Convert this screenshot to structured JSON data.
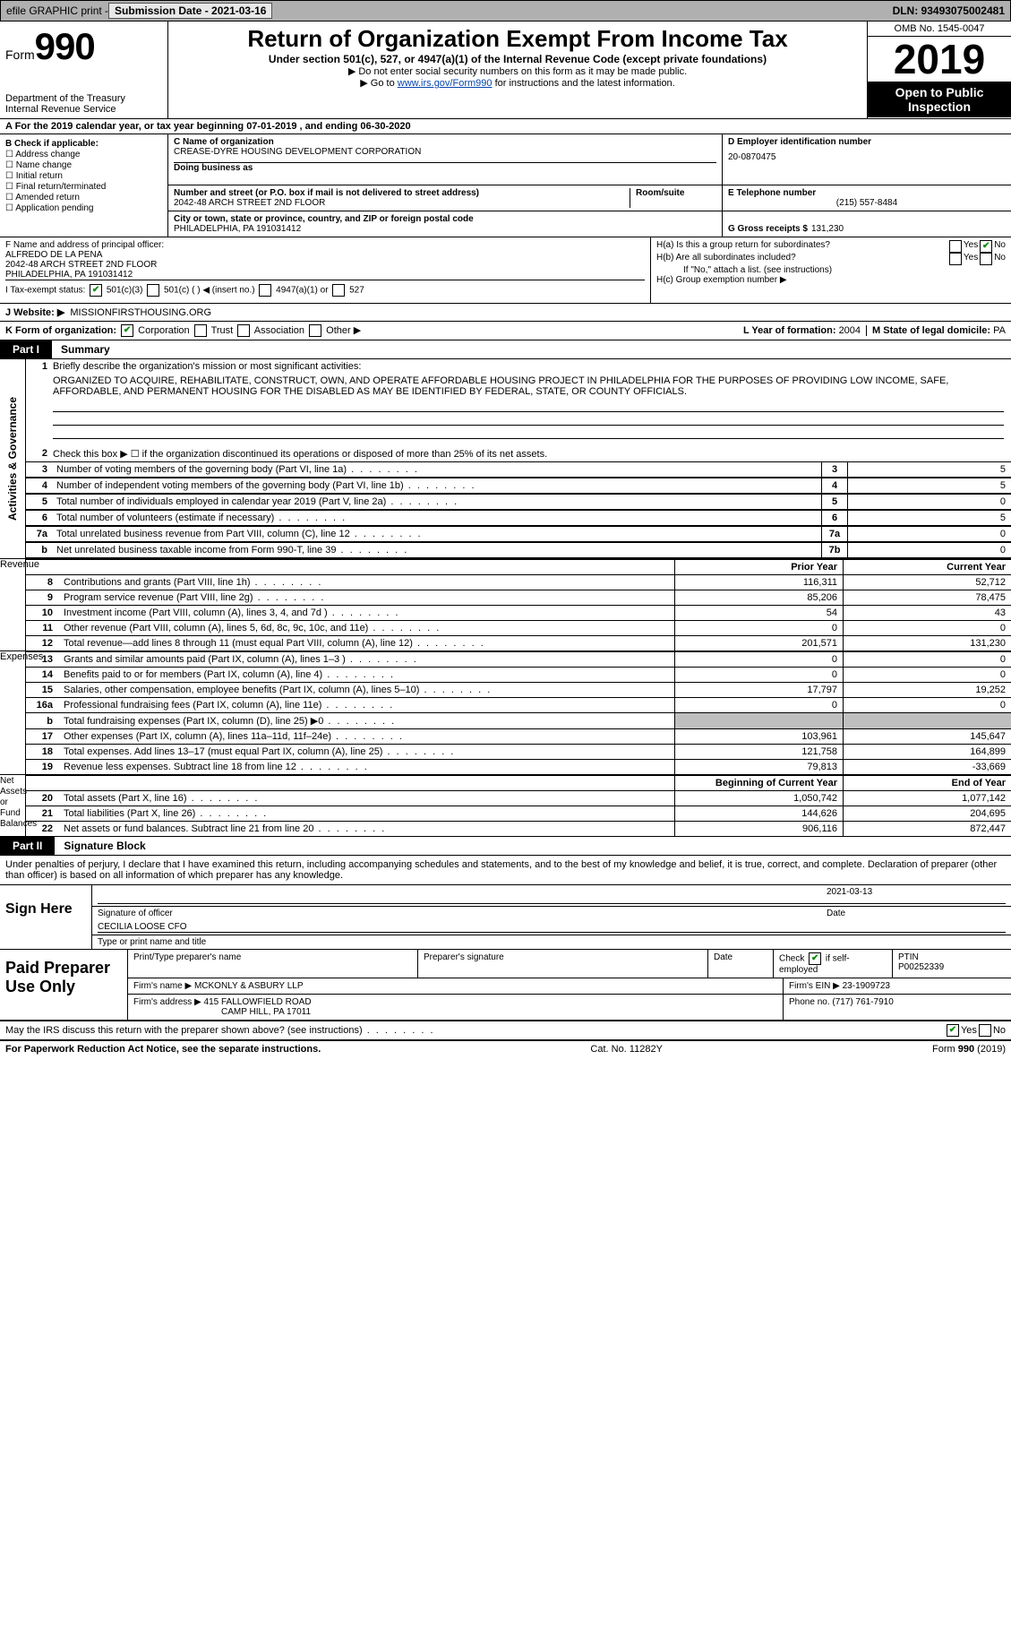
{
  "top": {
    "efile": "efile GRAPHIC print -",
    "submission": "Submission Date - 2021-03-16",
    "dln": "DLN: 93493075002481"
  },
  "header": {
    "form": "Form",
    "num": "990",
    "dept": "Department of the Treasury\nInternal Revenue Service",
    "title": "Return of Organization Exempt From Income Tax",
    "sub": "Under section 501(c), 527, or 4947(a)(1) of the Internal Revenue Code (except private foundations)",
    "note1": "▶ Do not enter social security numbers on this form as it may be made public.",
    "note2_pre": "▶ Go to ",
    "note2_link": "www.irs.gov/Form990",
    "note2_post": " for instructions and the latest information.",
    "omb": "OMB No. 1545-0047",
    "year": "2019",
    "opi": "Open to Public Inspection"
  },
  "rowA": "A For the 2019 calendar year, or tax year beginning 07-01-2019    , and ending 06-30-2020",
  "colB": {
    "title": "B Check if applicable:",
    "items": [
      "Address change",
      "Name change",
      "Initial return",
      "Final return/terminated",
      "Amended return",
      "Application pending"
    ]
  },
  "C": {
    "name_lbl": "C Name of organization",
    "name": "CREASE-DYRE HOUSING DEVELOPMENT CORPORATION",
    "dba_lbl": "Doing business as",
    "addr_lbl": "Number and street (or P.O. box if mail is not delivered to street address)",
    "addr": "2042-48 ARCH STREET 2ND FLOOR",
    "room_lbl": "Room/suite",
    "city_lbl": "City or town, state or province, country, and ZIP or foreign postal code",
    "city": "PHILADELPHIA, PA  191031412"
  },
  "D": {
    "lbl": "D Employer identification number",
    "val": "20-0870475"
  },
  "E": {
    "lbl": "E Telephone number",
    "val": "(215) 557-8484"
  },
  "G": {
    "lbl": "G Gross receipts $",
    "val": "131,230"
  },
  "F": {
    "lbl": "F  Name and address of principal officer:",
    "name": "ALFREDO DE LA PENA",
    "addr1": "2042-48 ARCH STREET 2ND FLOOR",
    "addr2": "PHILADELPHIA, PA  191031412"
  },
  "H": {
    "a": "H(a)  Is this a group return for subordinates?",
    "b": "H(b)  Are all subordinates included?",
    "note": "If \"No,\" attach a list. (see instructions)",
    "c": "H(c)  Group exemption number ▶",
    "yes": "Yes",
    "no": "No"
  },
  "I": {
    "lbl": "I    Tax-exempt status:",
    "o1": "501(c)(3)",
    "o2": "501(c) (  ) ◀ (insert no.)",
    "o3": "4947(a)(1) or",
    "o4": "527"
  },
  "J": {
    "lbl": "J   Website: ▶",
    "val": "MISSIONFIRSTHOUSING.ORG"
  },
  "K": {
    "lbl": "K Form of organization:",
    "o1": "Corporation",
    "o2": "Trust",
    "o3": "Association",
    "o4": "Other ▶"
  },
  "L": {
    "lbl": "L Year of formation:",
    "val": "2004"
  },
  "M": {
    "lbl": "M State of legal domicile:",
    "val": "PA"
  },
  "part1": {
    "num": "Part I",
    "title": "Summary"
  },
  "summary": {
    "s1": {
      "n": "1",
      "t": "Briefly describe the organization's mission or most significant activities:",
      "mission": "ORGANIZED TO ACQUIRE, REHABILITATE, CONSTRUCT, OWN, AND OPERATE AFFORDABLE HOUSING PROJECT IN PHILADELPHIA FOR THE PURPOSES OF PROVIDING LOW INCOME, SAFE, AFFORDABLE, AND PERMANENT HOUSING FOR THE DISABLED AS MAY BE IDENTIFIED BY FEDERAL, STATE, OR COUNTY OFFICIALS."
    },
    "s2": "Check this box ▶ ☐  if the organization discontinued its operations or disposed of more than 25% of its net assets.",
    "lines": [
      {
        "n": "3",
        "t": "Number of voting members of the governing body (Part VI, line 1a)",
        "ln": "3",
        "v": "5"
      },
      {
        "n": "4",
        "t": "Number of independent voting members of the governing body (Part VI, line 1b)",
        "ln": "4",
        "v": "5"
      },
      {
        "n": "5",
        "t": "Total number of individuals employed in calendar year 2019 (Part V, line 2a)",
        "ln": "5",
        "v": "0"
      },
      {
        "n": "6",
        "t": "Total number of volunteers (estimate if necessary)",
        "ln": "6",
        "v": "5"
      },
      {
        "n": "7a",
        "t": "Total unrelated business revenue from Part VIII, column (C), line 12",
        "ln": "7a",
        "v": "0"
      },
      {
        "n": "b",
        "t": "Net unrelated business taxable income from Form 990-T, line 39",
        "ln": "7b",
        "v": "0"
      }
    ],
    "side1": "Activities & Governance"
  },
  "fin": {
    "hdr_prior": "Prior Year",
    "hdr_curr": "Current Year",
    "rev_side": "Revenue",
    "exp_side": "Expenses",
    "net_side": "Net Assets or Fund Balances",
    "rev": [
      {
        "n": "8",
        "t": "Contributions and grants (Part VIII, line 1h)",
        "p": "116,311",
        "c": "52,712"
      },
      {
        "n": "9",
        "t": "Program service revenue (Part VIII, line 2g)",
        "p": "85,206",
        "c": "78,475"
      },
      {
        "n": "10",
        "t": "Investment income (Part VIII, column (A), lines 3, 4, and 7d )",
        "p": "54",
        "c": "43"
      },
      {
        "n": "11",
        "t": "Other revenue (Part VIII, column (A), lines 5, 6d, 8c, 9c, 10c, and 11e)",
        "p": "0",
        "c": "0"
      },
      {
        "n": "12",
        "t": "Total revenue—add lines 8 through 11 (must equal Part VIII, column (A), line 12)",
        "p": "201,571",
        "c": "131,230"
      }
    ],
    "exp": [
      {
        "n": "13",
        "t": "Grants and similar amounts paid (Part IX, column (A), lines 1–3 )",
        "p": "0",
        "c": "0"
      },
      {
        "n": "14",
        "t": "Benefits paid to or for members (Part IX, column (A), line 4)",
        "p": "0",
        "c": "0"
      },
      {
        "n": "15",
        "t": "Salaries, other compensation, employee benefits (Part IX, column (A), lines 5–10)",
        "p": "17,797",
        "c": "19,252"
      },
      {
        "n": "16a",
        "t": "Professional fundraising fees (Part IX, column (A), line 11e)",
        "p": "0",
        "c": "0"
      },
      {
        "n": "b",
        "t": "Total fundraising expenses (Part IX, column (D), line 25) ▶0",
        "p": "",
        "c": "",
        "shade": true
      },
      {
        "n": "17",
        "t": "Other expenses (Part IX, column (A), lines 11a–11d, 11f–24e)",
        "p": "103,961",
        "c": "145,647"
      },
      {
        "n": "18",
        "t": "Total expenses. Add lines 13–17 (must equal Part IX, column (A), line 25)",
        "p": "121,758",
        "c": "164,899"
      },
      {
        "n": "19",
        "t": "Revenue less expenses. Subtract line 18 from line 12",
        "p": "79,813",
        "c": "-33,669"
      }
    ],
    "hdr2_prior": "Beginning of Current Year",
    "hdr2_curr": "End of Year",
    "net": [
      {
        "n": "20",
        "t": "Total assets (Part X, line 16)",
        "p": "1,050,742",
        "c": "1,077,142"
      },
      {
        "n": "21",
        "t": "Total liabilities (Part X, line 26)",
        "p": "144,626",
        "c": "204,695"
      },
      {
        "n": "22",
        "t": "Net assets or fund balances. Subtract line 21 from line 20",
        "p": "906,116",
        "c": "872,447"
      }
    ]
  },
  "part2": {
    "num": "Part II",
    "title": "Signature Block"
  },
  "sig": {
    "perjury": "Under penalties of perjury, I declare that I have examined this return, including accompanying schedules and statements, and to the best of my knowledge and belief, it is true, correct, and complete. Declaration of preparer (other than officer) is based on all information of which preparer has any knowledge.",
    "sign_here": "Sign Here",
    "sig_officer": "Signature of officer",
    "date": "2021-03-13",
    "date_lbl": "Date",
    "name": "CECILIA LOOSE  CFO",
    "name_lbl": "Type or print name and title"
  },
  "paid": {
    "title": "Paid Preparer Use Only",
    "h1": "Print/Type preparer's name",
    "h2": "Preparer's signature",
    "h3": "Date",
    "h4_pre": "Check",
    "h4_post": "if self-employed",
    "h5": "PTIN",
    "ptin": "P00252339",
    "firm_lbl": "Firm's name    ▶",
    "firm": "MCKONLY & ASBURY LLP",
    "ein_lbl": "Firm's EIN ▶",
    "ein": "23-1909723",
    "addr_lbl": "Firm's address ▶",
    "addr1": "415 FALLOWFIELD ROAD",
    "addr2": "CAMP HILL, PA  17011",
    "phone_lbl": "Phone no.",
    "phone": "(717) 761-7910"
  },
  "discuss": "May the IRS discuss this return with the preparer shown above? (see instructions)",
  "footer": {
    "l": "For Paperwork Reduction Act Notice, see the separate instructions.",
    "m": "Cat. No. 11282Y",
    "r": "Form 990 (2019)"
  }
}
